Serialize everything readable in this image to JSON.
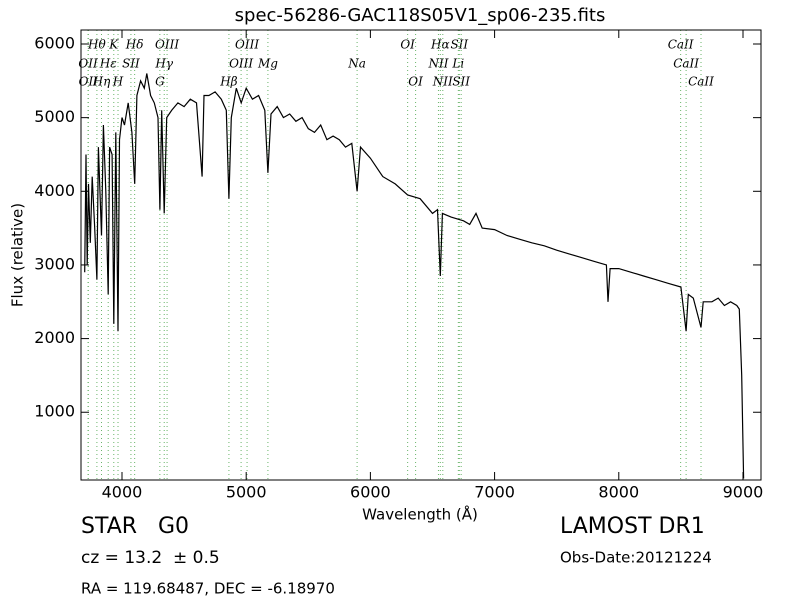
{
  "chart_data": {
    "type": "line",
    "title": "spec-56286-GAC118S05V1_sp06-235.fits",
    "xlabel": "Wavelength (Å)",
    "ylabel": "Flux (relative)",
    "xlim": [
      3670,
      9145
    ],
    "ylim": [
      80,
      6190
    ],
    "xticks": [
      4000,
      5000,
      6000,
      7000,
      8000,
      9000
    ],
    "yticks": [
      1000,
      2000,
      3000,
      4000,
      5000,
      6000
    ],
    "color": "#000000",
    "line_color": "#6ab46a",
    "x": [
      3700,
      3710,
      3720,
      3730,
      3745,
      3760,
      3780,
      3798,
      3810,
      3835,
      3850,
      3870,
      3889,
      3900,
      3920,
      3934,
      3950,
      3968,
      3980,
      4000,
      4020,
      4050,
      4080,
      4102,
      4120,
      4150,
      4180,
      4200,
      4230,
      4260,
      4290,
      4305,
      4320,
      4340,
      4360,
      4400,
      4450,
      4500,
      4550,
      4600,
      4645,
      4660,
      4700,
      4750,
      4800,
      4840,
      4861,
      4880,
      4920,
      4960,
      5000,
      5050,
      5100,
      5150,
      5175,
      5200,
      5250,
      5300,
      5350,
      5400,
      5450,
      5500,
      5550,
      5600,
      5650,
      5700,
      5750,
      5800,
      5850,
      5893,
      5920,
      6000,
      6100,
      6200,
      6300,
      6400,
      6500,
      6540,
      6563,
      6580,
      6650,
      6750,
      6800,
      6850,
      6900,
      7000,
      7100,
      7200,
      7300,
      7400,
      7500,
      7600,
      7700,
      7800,
      7900,
      7913,
      7930,
      8000,
      8100,
      8200,
      8300,
      8400,
      8500,
      8542,
      8560,
      8600,
      8662,
      8680,
      8750,
      8800,
      8850,
      8900,
      8950,
      8970,
      8990,
      9005
    ],
    "values": [
      2900,
      4500,
      3000,
      4100,
      3300,
      4200,
      3500,
      2800,
      4600,
      3400,
      4900,
      4000,
      2600,
      4600,
      4500,
      2200,
      4800,
      2100,
      4700,
      5000,
      4900,
      5200,
      4800,
      4100,
      5300,
      5500,
      5400,
      5600,
      5300,
      5200,
      5000,
      3750,
      5100,
      3700,
      5000,
      5100,
      5200,
      5150,
      5250,
      5200,
      4200,
      5300,
      5300,
      5350,
      5250,
      5100,
      3900,
      5000,
      5400,
      5200,
      5400,
      5250,
      5300,
      5100,
      4250,
      5050,
      5150,
      5000,
      5050,
      4950,
      5000,
      4850,
      4800,
      4900,
      4700,
      4750,
      4700,
      4600,
      4650,
      4000,
      4600,
      4450,
      4200,
      4100,
      3950,
      3900,
      3700,
      3750,
      2850,
      3700,
      3650,
      3600,
      3550,
      3700,
      3500,
      3480,
      3400,
      3350,
      3300,
      3260,
      3200,
      3150,
      3100,
      3050,
      3000,
      2500,
      2950,
      2950,
      2900,
      2850,
      2800,
      2750,
      2700,
      2100,
      2600,
      2550,
      2150,
      2500,
      2500,
      2550,
      2450,
      2500,
      2450,
      2400,
      1500,
      100
    ],
    "lines": [
      [
        {
          "label": "Hθ",
          "x": 3798
        },
        {
          "label": "K",
          "x": 3934
        },
        {
          "label": "Hδ",
          "x": 4102
        },
        {
          "label": "OIII",
          "x": 4363
        },
        {
          "label": "OIII",
          "x": 5007
        },
        {
          "label": "OI",
          "x": 6300
        },
        {
          "label": "Hα",
          "x": 6563
        },
        {
          "label": "SII",
          "x": 6716
        },
        {
          "label": "CaII",
          "x": 8498
        }
      ],
      [
        {
          "label": "OII",
          "x": 3727
        },
        {
          "label": "Hε",
          "x": 3889
        },
        {
          "label": "SII",
          "x": 4072
        },
        {
          "label": "Hγ",
          "x": 4340
        },
        {
          "label": "OIII",
          "x": 4959
        },
        {
          "label": "Mg",
          "x": 5175
        },
        {
          "label": "Na",
          "x": 5893
        },
        {
          "label": "NII",
          "x": 6548
        },
        {
          "label": "Li",
          "x": 6708
        },
        {
          "label": "CaII",
          "x": 8542
        }
      ],
      [
        {
          "label": "OII",
          "x": 3729
        },
        {
          "label": "Hη",
          "x": 3835
        },
        {
          "label": "H",
          "x": 3968
        },
        {
          "label": "G",
          "x": 4305
        },
        {
          "label": "Hβ",
          "x": 4861
        },
        {
          "label": "OI",
          "x": 6364
        },
        {
          "label": "NII",
          "x": 6583
        },
        {
          "label": "SII",
          "x": 6731
        },
        {
          "label": "CaII",
          "x": 8662
        }
      ]
    ]
  },
  "info": {
    "class": "STAR",
    "subclass": "G0",
    "cz": "cz = 13.2  ± 0.5",
    "radec": "RA = 119.68487, DEC = -6.18970",
    "survey": "LAMOST DR1",
    "date": "Obs-Date:20121224"
  }
}
